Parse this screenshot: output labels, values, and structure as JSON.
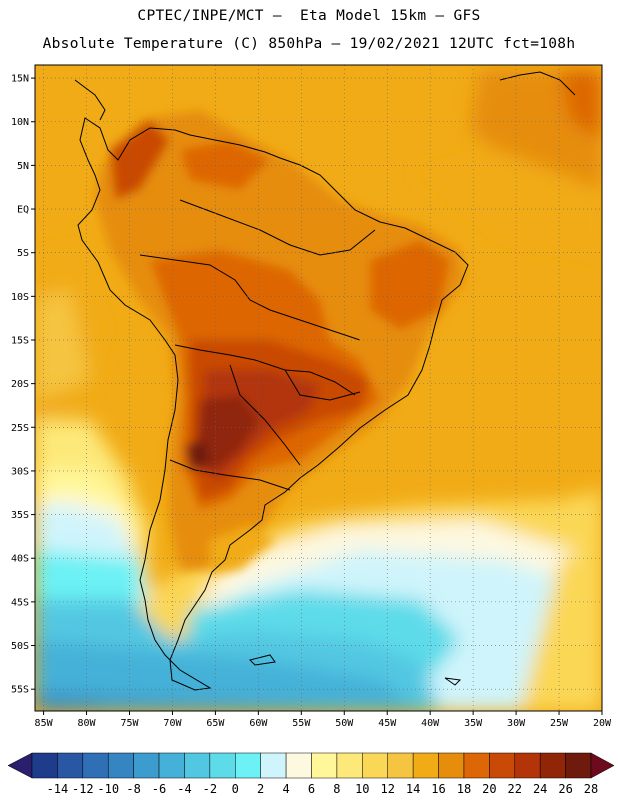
{
  "header": {
    "line1": "CPTEC/INPE/MCT –  Eta Model 15km – GFS",
    "line2": "Absolute Temperature (C) 850hPa – 19/02/2021 12UTC fct=108h"
  },
  "map": {
    "lat_labels": [
      "15N",
      "10N",
      "5N",
      "EQ",
      "5S",
      "10S",
      "15S",
      "20S",
      "25S",
      "30S",
      "35S",
      "40S",
      "45S",
      "50S",
      "55S"
    ],
    "lon_labels": [
      "85W",
      "80W",
      "75W",
      "70W",
      "65W",
      "60W",
      "55W",
      "50W",
      "45W",
      "40W",
      "35W",
      "30W",
      "25W",
      "20W"
    ],
    "lat_range": [
      -57.5,
      16.5
    ],
    "lon_range": [
      -86,
      -20
    ]
  },
  "colorbar": {
    "labels": [
      "-14",
      "-12",
      "-10",
      "-8",
      "-6",
      "-4",
      "-2",
      "0",
      "2",
      "4",
      "6",
      "8",
      "10",
      "12",
      "14",
      "16",
      "18",
      "20",
      "22",
      "24",
      "26",
      "28"
    ],
    "colors": [
      "#1f3c8c",
      "#2a57a4",
      "#2f6fb5",
      "#3585c2",
      "#3c9ccd",
      "#45b1d8",
      "#52c7e2",
      "#5ddbe9",
      "#6cf1f4",
      "#cff4fb",
      "#fdf8e0",
      "#fff79a",
      "#fde97a",
      "#fbd757",
      "#f5c440",
      "#f1ab16",
      "#e68d0c",
      "#dd6606",
      "#c94a06",
      "#b23408",
      "#902508",
      "#6e1a0d"
    ],
    "under_color": "#2a1f6e",
    "over_color": "#6e0a1e"
  }
}
